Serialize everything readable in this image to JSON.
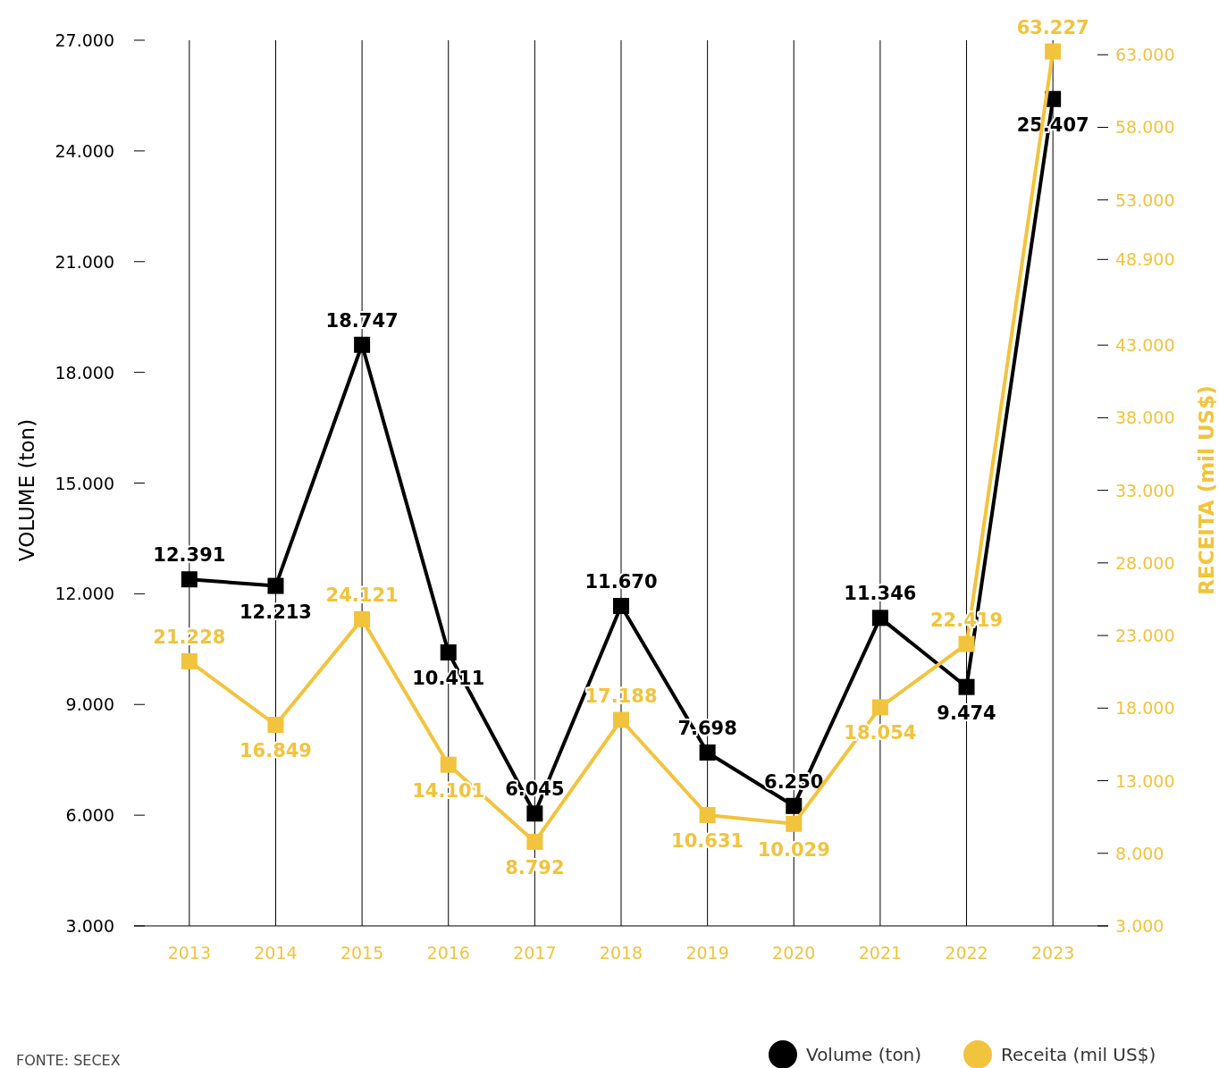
{
  "chart_data": {
    "type": "line",
    "categories": [
      "2013",
      "2014",
      "2015",
      "2016",
      "2017",
      "2018",
      "2019",
      "2020",
      "2021",
      "2022",
      "2023"
    ],
    "series": [
      {
        "name": "Volume (ton)",
        "color": "#000000",
        "values": [
          12391,
          12213,
          18747,
          10411,
          6045,
          11670,
          7698,
          6250,
          11346,
          9474,
          25407
        ],
        "value_labels": [
          "12.391",
          "12.213",
          "18.747",
          "10.411",
          "6.045",
          "11.670",
          "7.698",
          "6.250",
          "11.346",
          "9.474",
          "25.407"
        ]
      },
      {
        "name": "Receita (mil US$)",
        "color": "#f2c33d",
        "axis": "y2",
        "values": [
          21228,
          16849,
          24121,
          14101,
          8792,
          17188,
          10631,
          10029,
          18054,
          22419,
          63227
        ],
        "value_labels": [
          "21.228",
          "16.849",
          "24.121",
          "14.101",
          "8.792",
          "17.188",
          "10.631",
          "10.029",
          "18.054",
          "22.419",
          "63.227"
        ]
      }
    ],
    "ylim": [
      3000,
      27000
    ],
    "yticks": [
      {
        "value": 3000,
        "label": "3.000"
      },
      {
        "value": 6000,
        "label": "6.000"
      },
      {
        "value": 9000,
        "label": "9.000"
      },
      {
        "value": 12000,
        "label": "12.000"
      },
      {
        "value": 15000,
        "label": "15.000"
      },
      {
        "value": 18000,
        "label": "18.000"
      },
      {
        "value": 21000,
        "label": "21.000"
      },
      {
        "value": 24000,
        "label": "24.000"
      },
      {
        "value": 27000,
        "label": "27.000"
      }
    ],
    "y2lim": [
      3000,
      64000
    ],
    "y2ticks": [
      {
        "value": 3000,
        "label": "3.000"
      },
      {
        "value": 8000,
        "label": "8.000"
      },
      {
        "value": 13000,
        "label": "13.000"
      },
      {
        "value": 18000,
        "label": "18.000"
      },
      {
        "value": 23000,
        "label": "23.000"
      },
      {
        "value": 28000,
        "label": "28.000"
      },
      {
        "value": 33000,
        "label": "33.000"
      },
      {
        "value": 38000,
        "label": "38.000"
      },
      {
        "value": 43000,
        "label": "43.000"
      },
      {
        "value": 48900,
        "label": "48.900"
      },
      {
        "value": 53000,
        "label": "53.000"
      },
      {
        "value": 58000,
        "label": "58.000"
      },
      {
        "value": 63000,
        "label": "63.000"
      }
    ],
    "ylabel": "VOLUME (ton)",
    "y2label": "RECEITA (mil US$)",
    "grid": "x",
    "marker": "square",
    "line_style": "solid",
    "legend": "bottom right",
    "annotations": [
      "FONTE: SECEX"
    ]
  }
}
